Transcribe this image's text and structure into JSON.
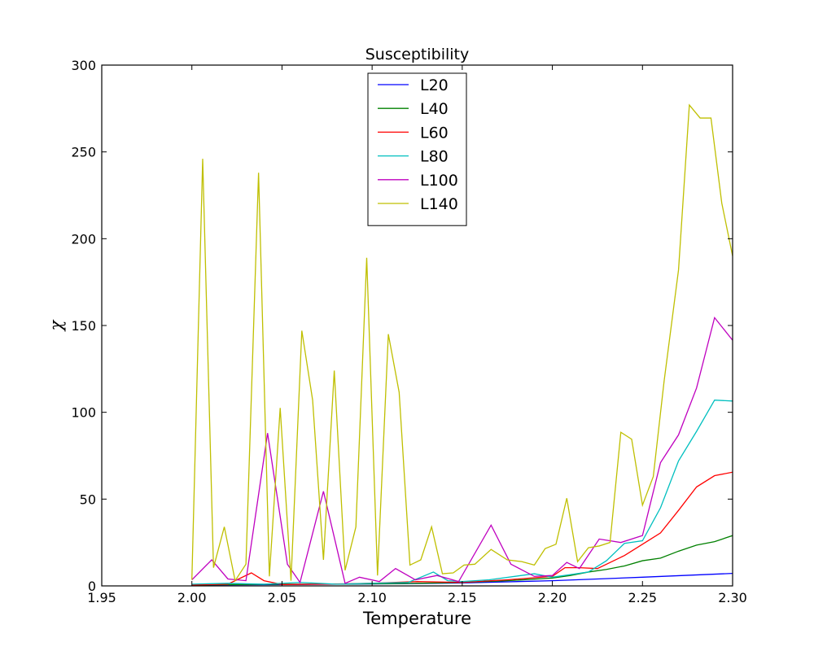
{
  "chart_data": {
    "type": "line",
    "title": "Susceptibility",
    "xlabel": "Temperature",
    "ylabel": "χ",
    "xlim": [
      1.95,
      2.3
    ],
    "ylim": [
      0,
      300
    ],
    "xticks": [
      "1.95",
      "2.00",
      "2.05",
      "2.10",
      "2.15",
      "2.20",
      "2.25",
      "2.30"
    ],
    "yticks": [
      "0",
      "50",
      "100",
      "150",
      "200",
      "250",
      "300"
    ],
    "grid": false,
    "legend_position": "top-center",
    "series": [
      {
        "name": "L20",
        "color": "#0000ff",
        "x": [
          2.0,
          2.05,
          2.1,
          2.15,
          2.2,
          2.25,
          2.3
        ],
        "y": [
          0.5,
          0.8,
          1.1,
          1.7,
          3.0,
          5.0,
          7.2
        ]
      },
      {
        "name": "L40",
        "color": "#008000",
        "x": [
          2.0,
          2.025,
          2.05,
          2.075,
          2.1,
          2.125,
          2.15,
          2.175,
          2.2,
          2.21,
          2.22,
          2.23,
          2.24,
          2.25,
          2.26,
          2.27,
          2.28,
          2.29,
          2.3
        ],
        "y": [
          0.5,
          0.8,
          1.0,
          1.0,
          1.2,
          1.5,
          2.0,
          3.0,
          4.5,
          6.0,
          8.0,
          9.5,
          11.5,
          14.5,
          16.0,
          20.0,
          23.5,
          25.5,
          29.0
        ]
      },
      {
        "name": "L60",
        "color": "#ff0000",
        "x": [
          2.0,
          2.02,
          2.033,
          2.04,
          2.05,
          2.075,
          2.1,
          2.125,
          2.15,
          2.175,
          2.2,
          2.207,
          2.215,
          2.225,
          2.24,
          2.25,
          2.26,
          2.27,
          2.28,
          2.29,
          2.3
        ],
        "y": [
          0.5,
          1.0,
          7.5,
          3.0,
          0.8,
          1.0,
          1.5,
          2.5,
          2.0,
          3.5,
          5.5,
          10.5,
          10.5,
          10.0,
          17.5,
          24.0,
          30.5,
          43.5,
          57.0,
          63.5,
          65.5
        ]
      },
      {
        "name": "L80",
        "color": "#00bfbf",
        "x": [
          2.0,
          2.02,
          2.04,
          2.06,
          2.08,
          2.1,
          2.12,
          2.134,
          2.142,
          2.15,
          2.165,
          2.19,
          2.2,
          2.21,
          2.22,
          2.23,
          2.24,
          2.25,
          2.26,
          2.27,
          2.28,
          2.29,
          2.3
        ],
        "y": [
          1.0,
          1.5,
          1.0,
          2.0,
          1.0,
          1.5,
          2.0,
          8.0,
          3.0,
          2.5,
          3.5,
          7.0,
          5.0,
          6.5,
          8.0,
          14.5,
          24.5,
          26.0,
          45.0,
          72.0,
          89.0,
          107.0,
          106.5
        ]
      },
      {
        "name": "L100",
        "color": "#bf00bf",
        "x": [
          2.0,
          2.011,
          2.02,
          2.03,
          2.042,
          2.053,
          2.06,
          2.073,
          2.085,
          2.093,
          2.104,
          2.113,
          2.124,
          2.136,
          2.148,
          2.166,
          2.177,
          2.19,
          2.2,
          2.208,
          2.215,
          2.226,
          2.238,
          2.25,
          2.26,
          2.27,
          2.28,
          2.29,
          2.3
        ],
        "y": [
          3.5,
          15.0,
          4.0,
          3.0,
          88.0,
          12.5,
          2.0,
          54.5,
          1.5,
          5.0,
          2.5,
          10.0,
          3.5,
          6.0,
          2.5,
          35.0,
          12.5,
          5.5,
          6.0,
          13.5,
          10.0,
          27.0,
          25.0,
          29.0,
          71.0,
          87.0,
          114.0,
          154.5,
          141.5
        ]
      },
      {
        "name": "L140",
        "color": "#bfbf00",
        "x": [
          2.0,
          2.006,
          2.012,
          2.018,
          2.024,
          2.03,
          2.037,
          2.043,
          2.049,
          2.055,
          2.061,
          2.067,
          2.073,
          2.079,
          2.085,
          2.091,
          2.097,
          2.103,
          2.109,
          2.115,
          2.121,
          2.127,
          2.133,
          2.139,
          2.145,
          2.151,
          2.157,
          2.166,
          2.175,
          2.183,
          2.19,
          2.196,
          2.202,
          2.208,
          2.214,
          2.22,
          2.226,
          2.232,
          2.238,
          2.244,
          2.25,
          2.256,
          2.262,
          2.27,
          2.276,
          2.282,
          2.288,
          2.294,
          2.3
        ],
        "y": [
          3.5,
          246.0,
          10.5,
          34.0,
          3.0,
          12.5,
          238.0,
          5.5,
          102.5,
          3.0,
          147.0,
          107.0,
          15.0,
          124.0,
          9.0,
          34.0,
          189.0,
          6.0,
          145.0,
          111.5,
          12.0,
          15.0,
          34.0,
          7.0,
          7.5,
          12.0,
          12.5,
          21.0,
          15.0,
          14.0,
          12.0,
          21.5,
          24.0,
          50.5,
          14.0,
          22.0,
          23.0,
          25.0,
          88.5,
          84.5,
          46.5,
          63.0,
          118.0,
          182.0,
          277.0,
          269.5,
          269.5,
          220.5,
          190.0
        ]
      }
    ]
  }
}
